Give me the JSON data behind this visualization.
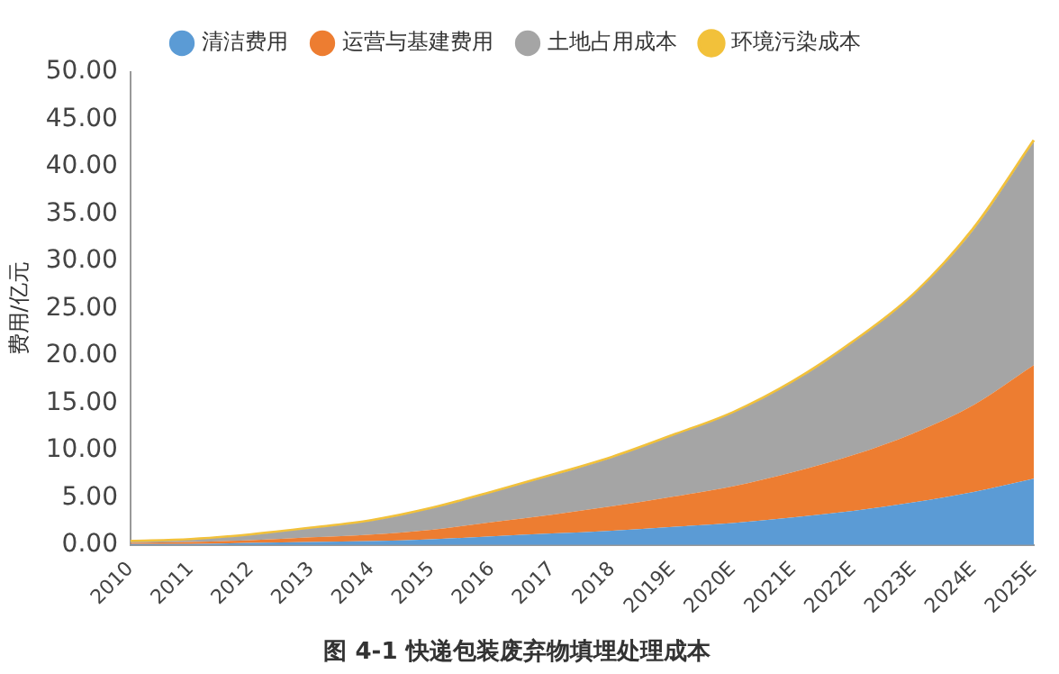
{
  "chart_data": {
    "type": "area",
    "stacked": true,
    "title": "图 4-1 快递包装废弃物填埋处理成本",
    "ylabel": "费用/亿元",
    "categories": [
      "2010",
      "2011",
      "2012",
      "2013",
      "2014",
      "2015",
      "2016",
      "2017",
      "2018",
      "2019E",
      "2020E",
      "2021E",
      "2022E",
      "2023E",
      "2024E",
      "2025E"
    ],
    "series": [
      {
        "name": "清洁费用",
        "color": "#5b9bd5",
        "values": [
          0.1,
          0.1,
          0.2,
          0.3,
          0.4,
          0.6,
          0.9,
          1.2,
          1.5,
          1.9,
          2.3,
          2.9,
          3.6,
          4.5,
          5.6,
          7.0
        ]
      },
      {
        "name": "运营与基建费用",
        "color": "#ed7d31",
        "values": [
          0.1,
          0.2,
          0.3,
          0.5,
          0.7,
          1.0,
          1.5,
          2.0,
          2.6,
          3.2,
          3.9,
          4.8,
          5.9,
          7.3,
          9.2,
          12.0
        ]
      },
      {
        "name": "土地占用成本",
        "color": "#a5a5a5",
        "values": [
          0.1,
          0.2,
          0.5,
          0.9,
          1.4,
          2.2,
          3.1,
          4.1,
          5.1,
          6.4,
          7.7,
          9.5,
          11.9,
          14.6,
          18.5,
          23.6
        ]
      },
      {
        "name": "环境污染成本",
        "color": "#f2c13a",
        "values": [
          0.1,
          0.1,
          0.1,
          0.1,
          0.1,
          0.1,
          0.1,
          0.1,
          0.1,
          0.1,
          0.1,
          0.1,
          0.1,
          0.1,
          0.2,
          0.2
        ]
      }
    ],
    "ylim": [
      0,
      50
    ],
    "yticks": [
      {
        "value": 0,
        "label": "0.00"
      },
      {
        "value": 5,
        "label": "5.00"
      },
      {
        "value": 10,
        "label": "10.00"
      },
      {
        "value": 15,
        "label": "15.00"
      },
      {
        "value": 20,
        "label": "20.00"
      },
      {
        "value": 25,
        "label": "25.00"
      },
      {
        "value": 30,
        "label": "30.00"
      },
      {
        "value": 35,
        "label": "35.00"
      },
      {
        "value": 40,
        "label": "40.00"
      },
      {
        "value": 45,
        "label": "45.00"
      },
      {
        "value": 50,
        "label": "50.00"
      }
    ],
    "grid": false,
    "legend": "top"
  }
}
